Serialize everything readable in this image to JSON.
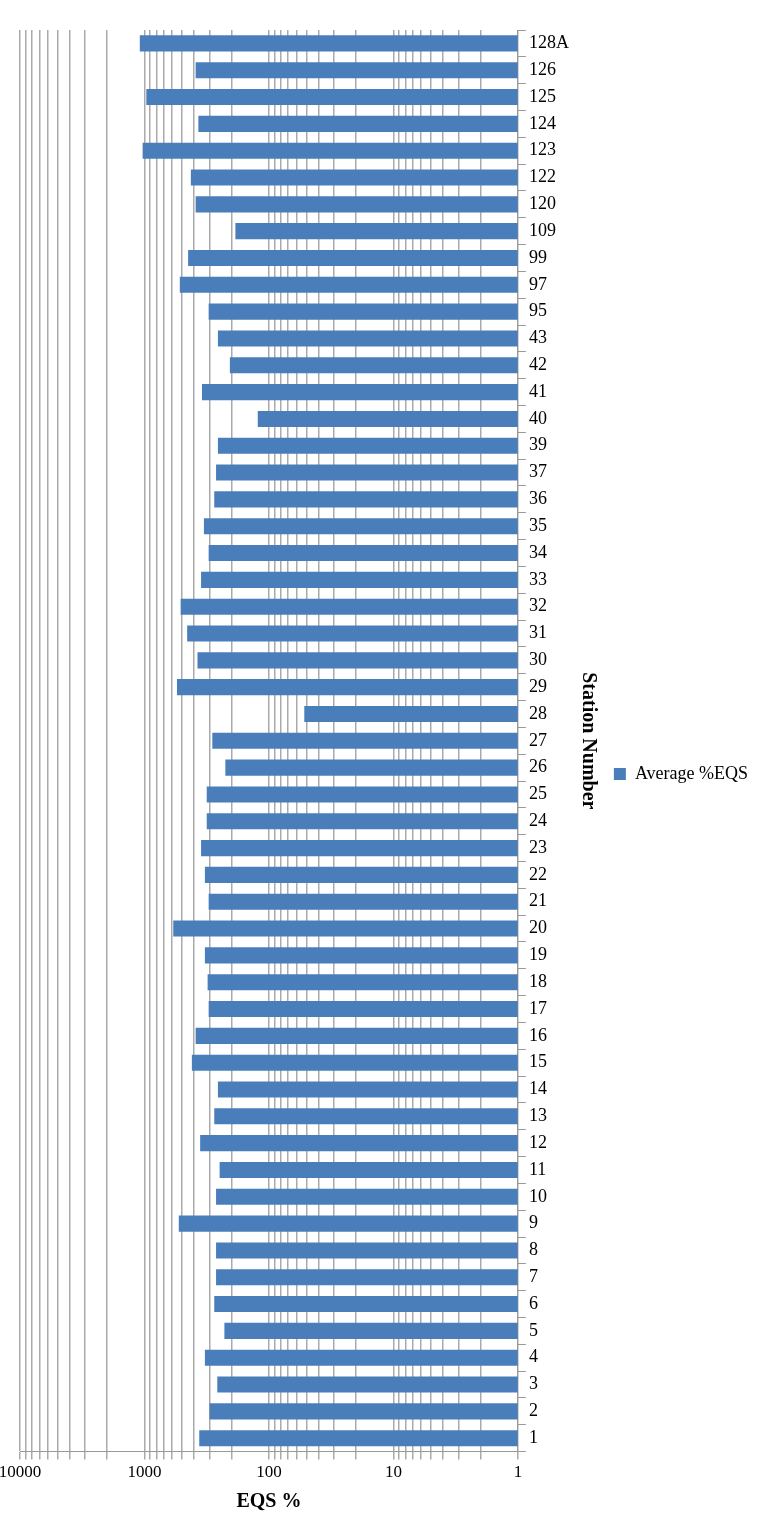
{
  "chart_data": {
    "type": "bar",
    "orientation": "horizontal",
    "xlabel": "EQS %",
    "ylabel": "Station Number",
    "categories": [
      "128A",
      "126",
      "125",
      "124",
      "123",
      "122",
      "120",
      "109",
      "99",
      "97",
      "95",
      "43",
      "42",
      "41",
      "40",
      "39",
      "37",
      "36",
      "35",
      "34",
      "33",
      "32",
      "31",
      "30",
      "29",
      "28",
      "27",
      "26",
      "25",
      "24",
      "23",
      "22",
      "21",
      "20",
      "19",
      "18",
      "17",
      "16",
      "15",
      "14",
      "13",
      "12",
      "11",
      "10",
      "9",
      "8",
      "7",
      "6",
      "5",
      "4",
      "3",
      "2",
      "1"
    ],
    "series": [
      {
        "name": "Average %EQS",
        "color": "#4a7ebb",
        "values": [
          1090,
          388,
          966,
          369,
          1035,
          424,
          388,
          186,
          446,
          520,
          305,
          257,
          206,
          345,
          123,
          257,
          266,
          275,
          333,
          305,
          351,
          512,
          454,
          375,
          548,
          52,
          285,
          224,
          316,
          316,
          351,
          327,
          305,
          587,
          327,
          311,
          305,
          388,
          416,
          257,
          275,
          357,
          249,
          266,
          530,
          266,
          266,
          275,
          228,
          327,
          260,
          300,
          363
        ]
      }
    ],
    "log": "x",
    "xlim": [
      10000,
      1
    ],
    "xticks": [
      1,
      {
        "value": 2,
        "label": null
      },
      {
        "value": 3,
        "label": null
      },
      {
        "value": 4,
        "label": null
      },
      {
        "value": 5,
        "label": null
      },
      {
        "value": 6,
        "label": null
      },
      {
        "value": 7,
        "label": null
      },
      {
        "value": 8,
        "label": null
      },
      {
        "value": 9,
        "label": null
      },
      10,
      {
        "value": 20,
        "label": null
      },
      {
        "value": 30,
        "label": null
      },
      {
        "value": 40,
        "label": null
      },
      {
        "value": 50,
        "label": null
      },
      {
        "value": 60,
        "label": null
      },
      {
        "value": 70,
        "label": null
      },
      {
        "value": 80,
        "label": null
      },
      {
        "value": 90,
        "label": null
      },
      100,
      {
        "value": 200,
        "label": null
      },
      {
        "value": 300,
        "label": null
      },
      {
        "value": 400,
        "label": null
      },
      {
        "value": 500,
        "label": null
      },
      {
        "value": 600,
        "label": null
      },
      {
        "value": 700,
        "label": null
      },
      {
        "value": 800,
        "label": null
      },
      {
        "value": 900,
        "label": null
      },
      1000,
      {
        "value": 2000,
        "label": null
      },
      {
        "value": 3000,
        "label": null
      },
      {
        "value": 4000,
        "label": null
      },
      {
        "value": 5000,
        "label": null
      },
      {
        "value": 6000,
        "label": null
      },
      {
        "value": 7000,
        "label": null
      },
      {
        "value": 8000,
        "label": null
      },
      {
        "value": 9000,
        "label": null
      },
      10000
    ],
    "grid": true,
    "legend": "right"
  }
}
